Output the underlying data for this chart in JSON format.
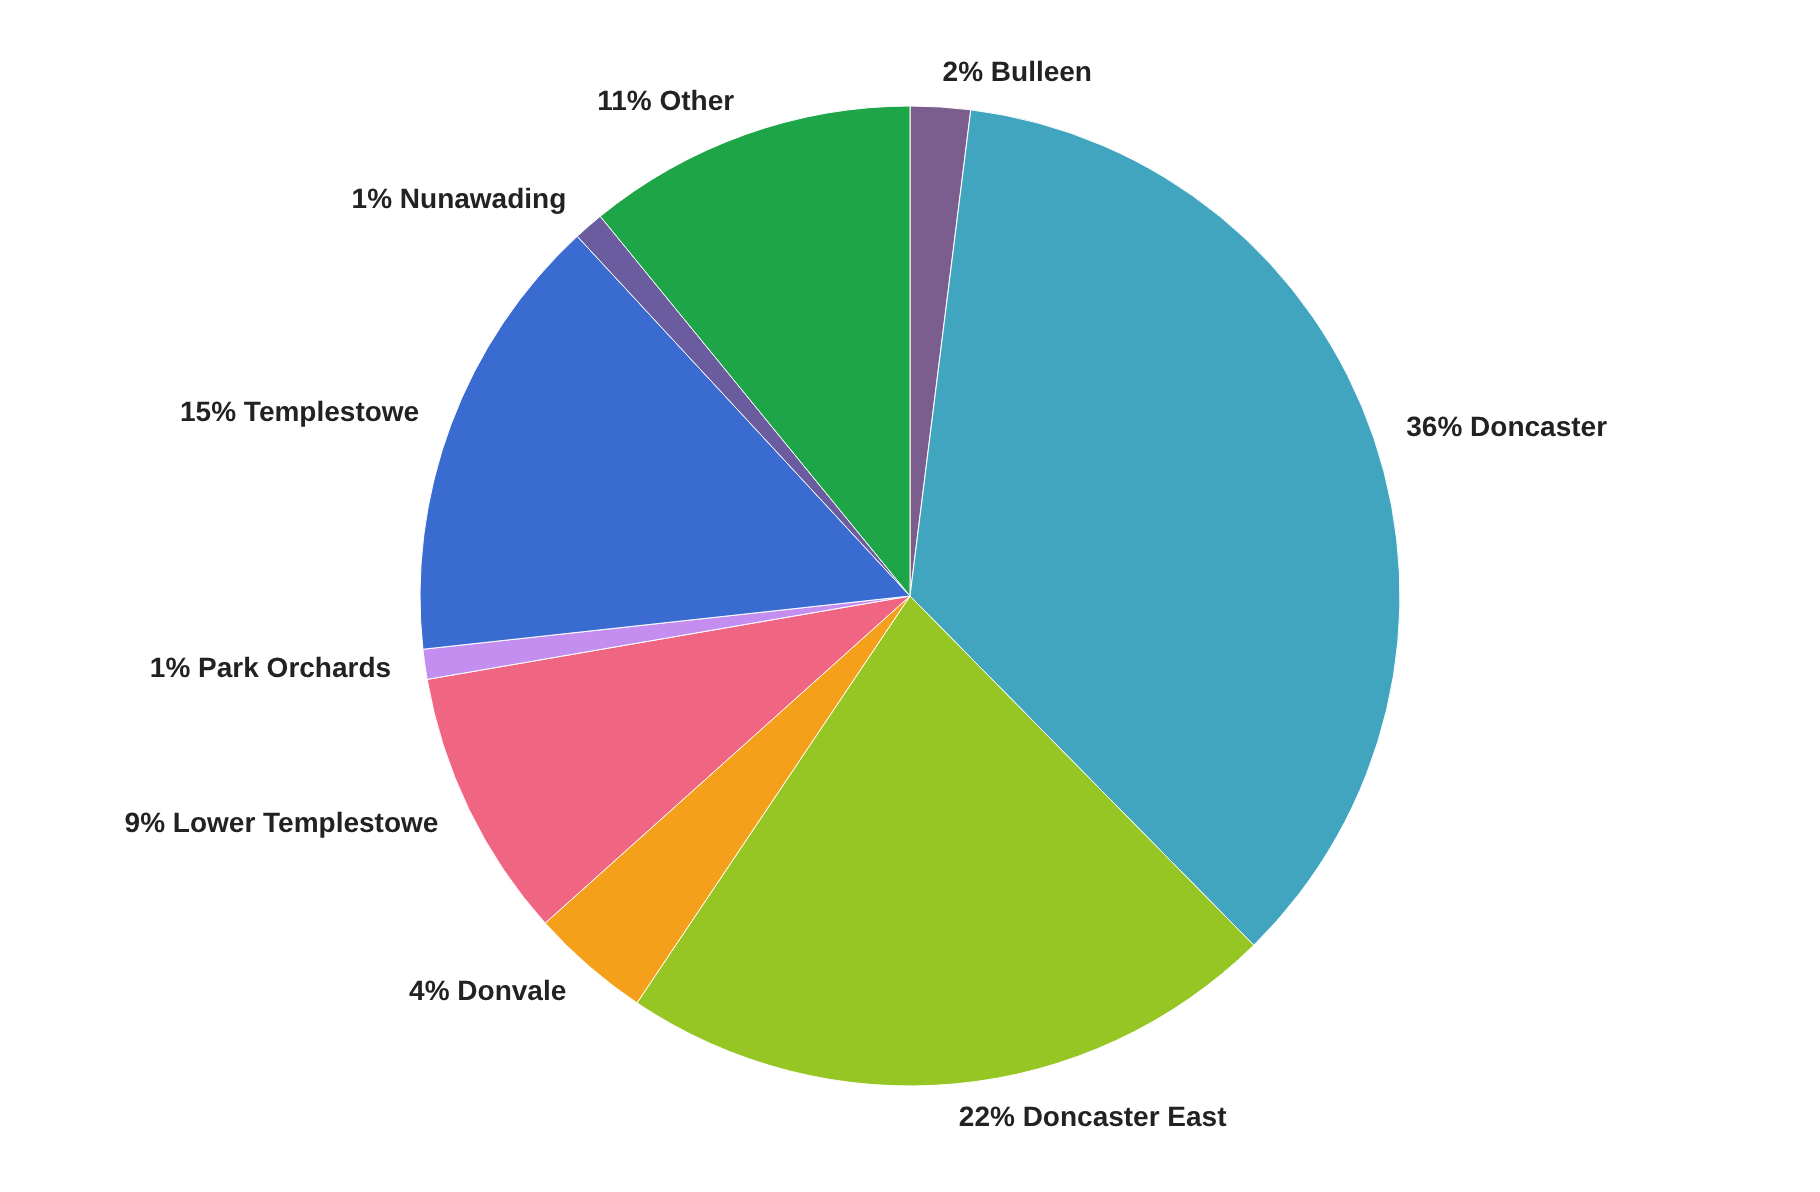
{
  "chart_data": {
    "type": "pie",
    "categories": [
      "Bulleen",
      "Doncaster",
      "Doncaster East",
      "Donvale",
      "Lower Templestowe",
      "Park Orchards",
      "Templestowe",
      "Nunawading",
      "Other"
    ],
    "values": [
      2,
      36,
      22,
      4,
      9,
      1,
      15,
      1,
      11
    ],
    "value_labels": [
      "2%",
      "36%",
      "22%",
      "4%",
      "9%",
      "1%",
      "15%",
      "1%",
      "11%"
    ],
    "colors": [
      "#7b5e8e",
      "#42a5c0",
      "#95c623",
      "#f5a01a",
      "#f06582",
      "#c38ef0",
      "#3a6bd0",
      "#6a5c9e",
      "#1ea547"
    ]
  }
}
